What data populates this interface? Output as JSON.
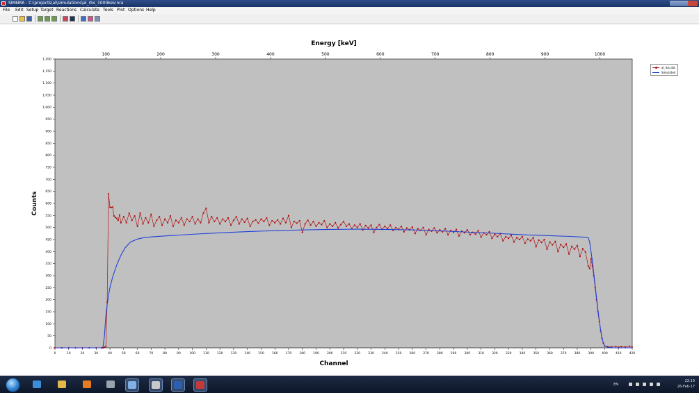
{
  "window": {
    "title": "SIMNRA - C:\\projects\\al\\simulations\\al_rbs_1000keV.nra"
  },
  "menu": [
    "File",
    "Edit",
    "Setup",
    "Target",
    "Reactions",
    "Calculate",
    "Tools",
    "Plot",
    "Options",
    "Help"
  ],
  "toolbar": {
    "icons": [
      "new-file-icon",
      "open-file-icon",
      "save-icon",
      "setup-icon",
      "target-icon",
      "reactions-icon",
      "calculate-icon",
      "info-icon",
      "plot-icon",
      "zoom-icon",
      "data-icon"
    ]
  },
  "colors": {
    "plot_background": "#c0c0c0",
    "experimental": "#b01010",
    "simulated": "#2040d8"
  },
  "chart_data": {
    "type": "line",
    "title": "",
    "top_axis_label": "Energy [keV]",
    "top_axis_ticks": [
      100,
      200,
      300,
      400,
      500,
      600,
      700,
      800,
      900,
      1000
    ],
    "xlabel": "Channel",
    "ylabel": "Counts",
    "xlim": [
      0,
      420
    ],
    "ylim": [
      0,
      1200
    ],
    "x_ticks": [
      0,
      10,
      20,
      30,
      40,
      50,
      60,
      70,
      80,
      90,
      100,
      110,
      120,
      130,
      140,
      150,
      160,
      170,
      180,
      190,
      200,
      210,
      220,
      230,
      240,
      250,
      260,
      270,
      280,
      290,
      300,
      310,
      320,
      330,
      340,
      350,
      360,
      370,
      380,
      390,
      400,
      410,
      420
    ],
    "y_ticks": [
      0,
      50,
      100,
      150,
      200,
      250,
      300,
      350,
      400,
      450,
      500,
      550,
      600,
      650,
      700,
      750,
      800,
      850,
      900,
      950,
      1000,
      1050,
      1100,
      1150,
      1200
    ],
    "y_tick_labels": [
      "0",
      "50",
      "100",
      "150",
      "200",
      "250",
      "300",
      "350",
      "400",
      "450",
      "500",
      "550",
      "600",
      "650",
      "700",
      "750",
      "800",
      "850",
      "900",
      "950",
      "1,000",
      "1,050",
      "1,100",
      "1,150",
      "1,200"
    ],
    "legend_position": "top-right, outside plot",
    "series": [
      {
        "name": "al_rbs.dat",
        "style": "line-with-markers",
        "points": [
          [
            0,
            0
          ],
          [
            5,
            0
          ],
          [
            10,
            0
          ],
          [
            15,
            0
          ],
          [
            20,
            0
          ],
          [
            25,
            0
          ],
          [
            30,
            0
          ],
          [
            34,
            0
          ],
          [
            35,
            0
          ],
          [
            36,
            3
          ],
          [
            37,
            5
          ],
          [
            38,
            190
          ],
          [
            39,
            640
          ],
          [
            40,
            585
          ],
          [
            41,
            583
          ],
          [
            42,
            585
          ],
          [
            43,
            548
          ],
          [
            44,
            542
          ],
          [
            45,
            538
          ],
          [
            46,
            530
          ],
          [
            47,
            552
          ],
          [
            48,
            520
          ],
          [
            50,
            545
          ],
          [
            52,
            520
          ],
          [
            54,
            560
          ],
          [
            56,
            530
          ],
          [
            58,
            548
          ],
          [
            60,
            505
          ],
          [
            62,
            560
          ],
          [
            64,
            515
          ],
          [
            66,
            540
          ],
          [
            68,
            520
          ],
          [
            70,
            555
          ],
          [
            72,
            505
          ],
          [
            74,
            530
          ],
          [
            76,
            545
          ],
          [
            78,
            510
          ],
          [
            80,
            535
          ],
          [
            82,
            520
          ],
          [
            84,
            548
          ],
          [
            86,
            505
          ],
          [
            88,
            530
          ],
          [
            90,
            520
          ],
          [
            92,
            540
          ],
          [
            94,
            510
          ],
          [
            96,
            535
          ],
          [
            98,
            525
          ],
          [
            100,
            545
          ],
          [
            102,
            515
          ],
          [
            104,
            535
          ],
          [
            106,
            520
          ],
          [
            108,
            560
          ],
          [
            110,
            580
          ],
          [
            112,
            520
          ],
          [
            114,
            545
          ],
          [
            116,
            525
          ],
          [
            118,
            540
          ],
          [
            120,
            515
          ],
          [
            122,
            535
          ],
          [
            124,
            525
          ],
          [
            126,
            540
          ],
          [
            128,
            510
          ],
          [
            130,
            530
          ],
          [
            132,
            545
          ],
          [
            134,
            515
          ],
          [
            136,
            535
          ],
          [
            138,
            522
          ],
          [
            140,
            538
          ],
          [
            142,
            505
          ],
          [
            144,
            525
          ],
          [
            146,
            532
          ],
          [
            148,
            518
          ],
          [
            150,
            535
          ],
          [
            152,
            525
          ],
          [
            154,
            540
          ],
          [
            156,
            510
          ],
          [
            158,
            528
          ],
          [
            160,
            520
          ],
          [
            162,
            532
          ],
          [
            164,
            515
          ],
          [
            166,
            538
          ],
          [
            168,
            520
          ],
          [
            170,
            550
          ],
          [
            172,
            500
          ],
          [
            174,
            525
          ],
          [
            176,
            518
          ],
          [
            178,
            528
          ],
          [
            180,
            480
          ],
          [
            182,
            515
          ],
          [
            184,
            530
          ],
          [
            186,
            510
          ],
          [
            188,
            525
          ],
          [
            190,
            505
          ],
          [
            192,
            520
          ],
          [
            194,
            512
          ],
          [
            196,
            528
          ],
          [
            198,
            500
          ],
          [
            200,
            515
          ],
          [
            202,
            505
          ],
          [
            204,
            520
          ],
          [
            206,
            498
          ],
          [
            208,
            512
          ],
          [
            210,
            525
          ],
          [
            212,
            505
          ],
          [
            214,
            515
          ],
          [
            216,
            495
          ],
          [
            218,
            510
          ],
          [
            220,
            500
          ],
          [
            222,
            515
          ],
          [
            224,
            490
          ],
          [
            226,
            508
          ],
          [
            228,
            498
          ],
          [
            230,
            510
          ],
          [
            232,
            480
          ],
          [
            234,
            500
          ],
          [
            236,
            512
          ],
          [
            238,
            492
          ],
          [
            240,
            505
          ],
          [
            242,
            495
          ],
          [
            244,
            510
          ],
          [
            246,
            488
          ],
          [
            248,
            500
          ],
          [
            250,
            492
          ],
          [
            252,
            505
          ],
          [
            254,
            482
          ],
          [
            256,
            498
          ],
          [
            258,
            490
          ],
          [
            260,
            502
          ],
          [
            262,
            475
          ],
          [
            264,
            495
          ],
          [
            266,
            488
          ],
          [
            268,
            500
          ],
          [
            270,
            470
          ],
          [
            272,
            492
          ],
          [
            274,
            485
          ],
          [
            276,
            498
          ],
          [
            278,
            478
          ],
          [
            280,
            490
          ],
          [
            282,
            482
          ],
          [
            284,
            495
          ],
          [
            286,
            470
          ],
          [
            288,
            488
          ],
          [
            290,
            480
          ],
          [
            292,
            492
          ],
          [
            294,
            465
          ],
          [
            296,
            485
          ],
          [
            298,
            478
          ],
          [
            300,
            490
          ],
          [
            302,
            470
          ],
          [
            304,
            480
          ],
          [
            306,
            472
          ],
          [
            308,
            488
          ],
          [
            310,
            460
          ],
          [
            312,
            478
          ],
          [
            314,
            470
          ],
          [
            316,
            482
          ],
          [
            318,
            455
          ],
          [
            320,
            472
          ],
          [
            322,
            462
          ],
          [
            324,
            475
          ],
          [
            326,
            445
          ],
          [
            328,
            462
          ],
          [
            330,
            455
          ],
          [
            332,
            468
          ],
          [
            334,
            440
          ],
          [
            336,
            458
          ],
          [
            338,
            450
          ],
          [
            340,
            462
          ],
          [
            342,
            435
          ],
          [
            344,
            452
          ],
          [
            346,
            445
          ],
          [
            348,
            458
          ],
          [
            350,
            420
          ],
          [
            352,
            448
          ],
          [
            354,
            438
          ],
          [
            356,
            450
          ],
          [
            358,
            410
          ],
          [
            360,
            440
          ],
          [
            362,
            428
          ],
          [
            364,
            442
          ],
          [
            366,
            400
          ],
          [
            368,
            430
          ],
          [
            370,
            418
          ],
          [
            372,
            432
          ],
          [
            374,
            390
          ],
          [
            376,
            422
          ],
          [
            378,
            410
          ],
          [
            380,
            425
          ],
          [
            382,
            380
          ],
          [
            384,
            412
          ],
          [
            386,
            398
          ],
          [
            388,
            340
          ],
          [
            389,
            330
          ],
          [
            390,
            370
          ],
          [
            391,
            340
          ],
          [
            392,
            300
          ],
          [
            393,
            250
          ],
          [
            394,
            200
          ],
          [
            395,
            150
          ],
          [
            396,
            110
          ],
          [
            397,
            70
          ],
          [
            398,
            40
          ],
          [
            399,
            20
          ],
          [
            400,
            8
          ],
          [
            402,
            5
          ],
          [
            405,
            4
          ],
          [
            408,
            6
          ],
          [
            410,
            3
          ],
          [
            412,
            5
          ],
          [
            415,
            4
          ],
          [
            418,
            7
          ],
          [
            420,
            3
          ]
        ]
      },
      {
        "name": "Simulated",
        "style": "line",
        "points": [
          [
            0,
            0
          ],
          [
            34,
            0
          ],
          [
            35,
            5
          ],
          [
            36,
            50
          ],
          [
            37,
            130
          ],
          [
            38,
            180
          ],
          [
            39,
            220
          ],
          [
            40,
            250
          ],
          [
            42,
            295
          ],
          [
            45,
            345
          ],
          [
            48,
            385
          ],
          [
            51,
            415
          ],
          [
            55,
            440
          ],
          [
            60,
            452
          ],
          [
            65,
            458
          ],
          [
            70,
            461
          ],
          [
            80,
            465
          ],
          [
            100,
            472
          ],
          [
            120,
            478
          ],
          [
            140,
            483
          ],
          [
            160,
            487
          ],
          [
            180,
            490
          ],
          [
            200,
            492
          ],
          [
            220,
            493
          ],
          [
            240,
            492
          ],
          [
            260,
            490
          ],
          [
            280,
            486
          ],
          [
            300,
            481
          ],
          [
            320,
            476
          ],
          [
            340,
            470
          ],
          [
            360,
            466
          ],
          [
            375,
            463
          ],
          [
            385,
            460
          ],
          [
            388,
            458
          ],
          [
            389,
            440
          ],
          [
            390,
            400
          ],
          [
            391,
            360
          ],
          [
            392,
            310
          ],
          [
            393,
            260
          ],
          [
            394,
            210
          ],
          [
            395,
            160
          ],
          [
            396,
            115
          ],
          [
            397,
            75
          ],
          [
            398,
            42
          ],
          [
            399,
            20
          ],
          [
            400,
            8
          ],
          [
            402,
            3
          ],
          [
            405,
            0
          ],
          [
            420,
            0
          ]
        ]
      }
    ]
  },
  "taskbar": {
    "items": [
      {
        "icon": "ie-icon",
        "active": false,
        "color": "#3b8fd9"
      },
      {
        "icon": "folder-icon",
        "active": false,
        "color": "#e2b64a"
      },
      {
        "icon": "firefox-icon",
        "active": false,
        "color": "#e87a22"
      },
      {
        "icon": "network-icon",
        "active": false,
        "color": "#9aa3ad"
      },
      {
        "icon": "explorer-window-icon",
        "active": true,
        "color": "#7fb1e6"
      },
      {
        "icon": "media-icon",
        "active": true,
        "color": "#c9c9c9"
      },
      {
        "icon": "word-icon",
        "active": true,
        "color": "#2b5fb4"
      },
      {
        "icon": "simnra-icon",
        "active": true,
        "color": "#c33a3a"
      }
    ],
    "tray": {
      "language": "EN",
      "time": "22:10",
      "date": "26-Feb-17"
    }
  }
}
